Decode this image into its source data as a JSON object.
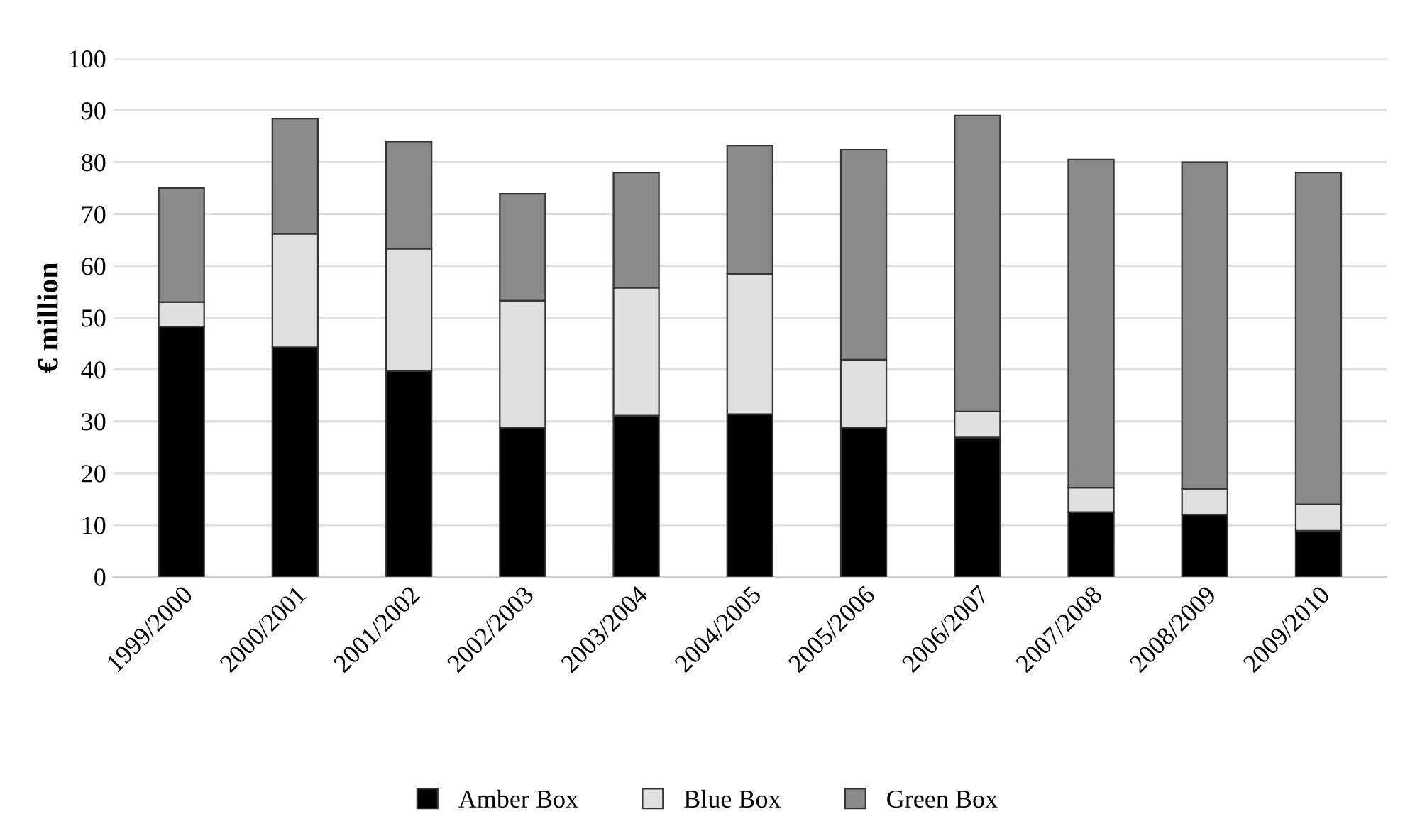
{
  "chart_data": {
    "type": "bar",
    "stacked": true,
    "ylabel": "€ million",
    "categories": [
      "1999/2000",
      "2000/2001",
      "2001/2002",
      "2002/2003",
      "2003/2004",
      "2004/2005",
      "2005/2006",
      "2006/2007",
      "2007/2008",
      "2008/2009",
      "2009/2010"
    ],
    "series": [
      {
        "name": "Amber Box",
        "color": "#000000",
        "values": [
          48.3,
          44.3,
          39.7,
          28.8,
          31.1,
          31.4,
          28.8,
          26.9,
          12.5,
          12.0,
          8.9
        ]
      },
      {
        "name": "Blue Box",
        "color": "#e0e0e0",
        "values": [
          4.7,
          21.9,
          23.6,
          24.5,
          24.7,
          27.1,
          13.1,
          5.0,
          4.7,
          5.0,
          5.1
        ]
      },
      {
        "name": "Green Box",
        "color": "#8a8a8a",
        "values": [
          22.0,
          22.2,
          20.7,
          20.6,
          22.2,
          24.7,
          40.5,
          57.1,
          63.3,
          63.0,
          64.0
        ]
      }
    ],
    "ylim": [
      0,
      100
    ],
    "yticks": [
      0,
      10,
      20,
      30,
      40,
      50,
      60,
      70,
      80,
      90,
      100
    ],
    "grid": "y",
    "legend": "bottom"
  }
}
